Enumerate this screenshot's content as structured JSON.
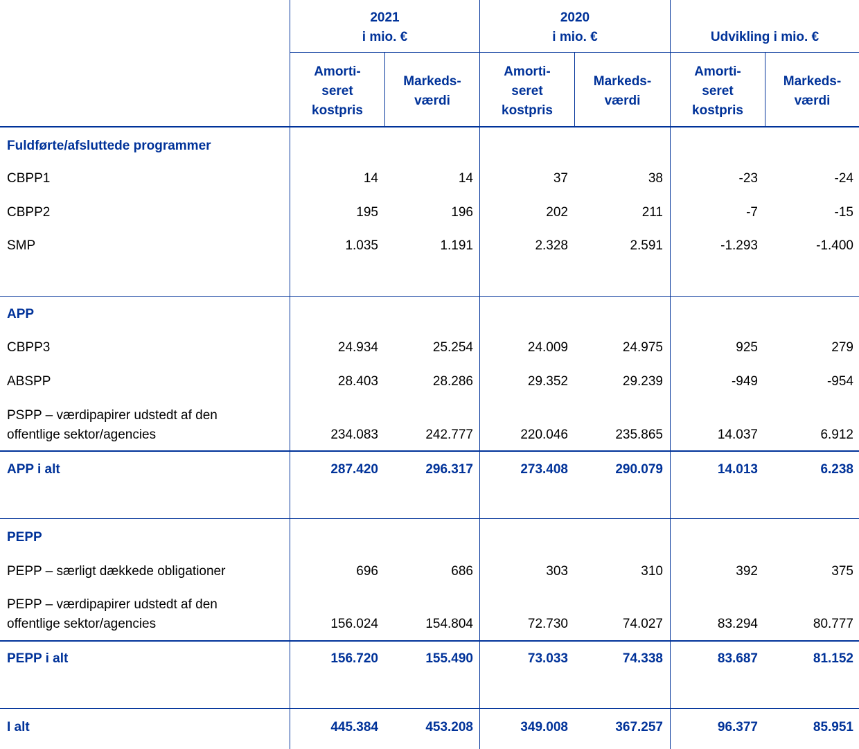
{
  "header": {
    "groups": [
      {
        "label": "2021\ni mio. €"
      },
      {
        "label": "2020\ni mio. €"
      },
      {
        "label": "Udvikling i mio. €"
      }
    ],
    "subcols": [
      "Amorti-\nseret\nkostpris",
      "Markeds-\nværdi",
      "Amorti-\nseret\nkostpris",
      "Markeds-\nværdi",
      "Amorti-\nseret\nkostpris",
      "Markeds-\nværdi"
    ]
  },
  "sections": [
    {
      "title": "Fuldførte/afsluttede programmer",
      "rows": [
        {
          "label": "CBPP1",
          "values": [
            "14",
            "14",
            "37",
            "38",
            "-23",
            "-24"
          ]
        },
        {
          "label": "CBPP2",
          "values": [
            "195",
            "196",
            "202",
            "211",
            "-7",
            "-15"
          ]
        },
        {
          "label": "SMP",
          "values": [
            "1.035",
            "1.191",
            "2.328",
            "2.591",
            "-1.293",
            "-1.400"
          ]
        }
      ]
    },
    {
      "title": "APP",
      "rows": [
        {
          "label": "CBPP3",
          "values": [
            "24.934",
            "25.254",
            "24.009",
            "24.975",
            "925",
            "279"
          ]
        },
        {
          "label": "ABSPP",
          "values": [
            "28.403",
            "28.286",
            "29.352",
            "29.239",
            "-949",
            "-954"
          ]
        },
        {
          "label": "PSPP – værdipapirer udstedt af den\noffentlige sektor/agencies",
          "values": [
            "234.083",
            "242.777",
            "220.046",
            "235.865",
            "14.037",
            "6.912"
          ]
        }
      ],
      "total": {
        "label": "APP i alt",
        "values": [
          "287.420",
          "296.317",
          "273.408",
          "290.079",
          "14.013",
          "6.238"
        ]
      }
    },
    {
      "title": "PEPP",
      "rows": [
        {
          "label": "PEPP – særligt dækkede obligationer",
          "values": [
            "696",
            "686",
            "303",
            "310",
            "392",
            "375"
          ]
        },
        {
          "label": "PEPP – værdipapirer udstedt af den\noffentlige sektor/agencies",
          "values": [
            "156.024",
            "154.804",
            "72.730",
            "74.027",
            "83.294",
            "80.777"
          ]
        }
      ],
      "total": {
        "label": "PEPP i alt",
        "values": [
          "156.720",
          "155.490",
          "73.033",
          "74.338",
          "83.687",
          "81.152"
        ]
      }
    }
  ],
  "grand_total": {
    "label": "I alt",
    "values": [
      "445.384",
      "453.208",
      "349.008",
      "367.257",
      "96.377",
      "85.951"
    ]
  },
  "colors": {
    "accent": "#003299",
    "text": "#000000"
  }
}
